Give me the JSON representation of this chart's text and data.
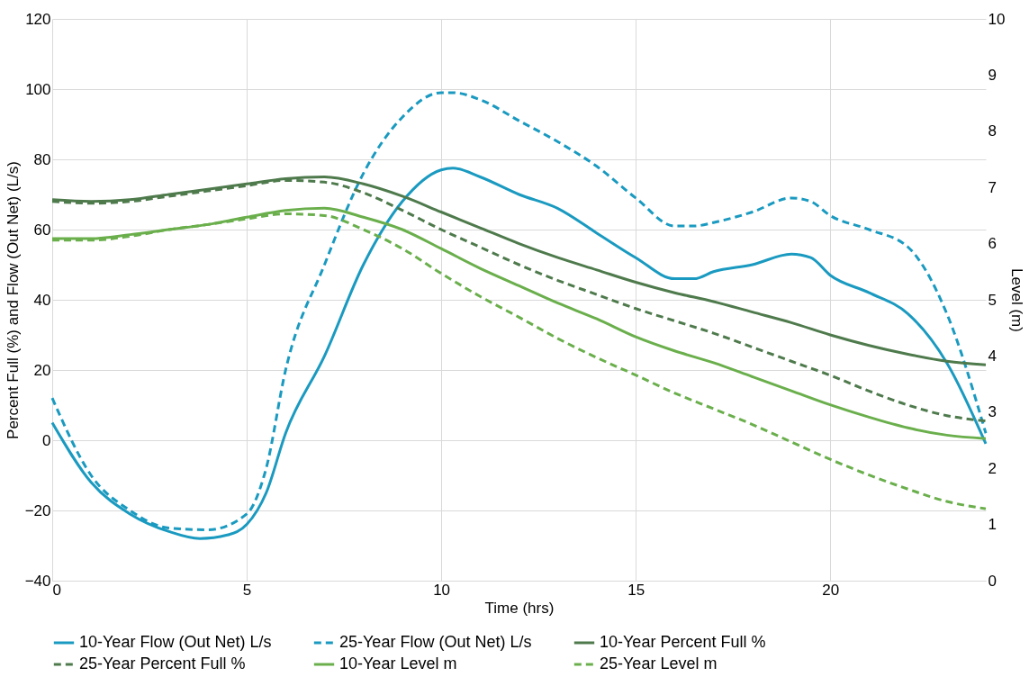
{
  "chart_data": {
    "type": "line",
    "xlabel": "Time (hrs)",
    "ylabel": "Percent Full (%) and Flow (Out Net) (L/s)",
    "y2label": "Level (m)",
    "x": [
      0,
      1,
      2,
      3,
      4,
      5,
      6,
      7,
      8,
      9,
      10,
      11,
      12,
      13,
      14,
      15,
      16,
      17,
      18,
      19,
      20,
      21,
      22,
      23,
      24
    ],
    "xlim": [
      0,
      24
    ],
    "xticks": [
      0,
      5,
      10,
      15,
      20
    ],
    "ylim": [
      -40,
      120
    ],
    "yticks": [
      -40,
      -20,
      0,
      20,
      40,
      60,
      80,
      100,
      120
    ],
    "y2lim": [
      0,
      10
    ],
    "y2ticks": [
      0,
      1,
      2,
      3,
      4,
      5,
      6,
      7,
      8,
      9,
      10
    ],
    "grid": true,
    "legend": "bottom",
    "series": [
      {
        "name": "10-Year Flow (Out Net) L/s",
        "color": "#1a9ac0",
        "line_style": "solid",
        "x": [
          0,
          1,
          2,
          3,
          3.8,
          4.5,
          5,
          5.5,
          6,
          7,
          8,
          9,
          10,
          10.3,
          11,
          12,
          13,
          14,
          15,
          16,
          16.5,
          17,
          18,
          19,
          19.5,
          20,
          21,
          22,
          23,
          24
        ],
        "values": [
          5,
          -12,
          -21,
          -26,
          -28,
          -27,
          -24,
          -15,
          2,
          24,
          50,
          68,
          77,
          77.5,
          75,
          70,
          66,
          59,
          52,
          46,
          46,
          48,
          50,
          53,
          52,
          47,
          42,
          36,
          22,
          -1
        ]
      },
      {
        "name": "25-Year Flow (Out Net) L/s",
        "color": "#1a9ac0",
        "line_style": "dashed",
        "x": [
          0,
          1,
          2,
          3,
          4,
          5,
          5.5,
          6,
          7,
          8,
          9,
          10,
          10.3,
          11,
          12,
          13,
          14,
          15,
          16,
          16.5,
          17,
          18,
          19,
          19.5,
          20,
          21,
          22,
          23,
          24
        ],
        "values": [
          12,
          -10,
          -20,
          -25,
          -25.5,
          -21,
          -8,
          20,
          50,
          76,
          92,
          99,
          99,
          97,
          91,
          85,
          78,
          69,
          61,
          61,
          62,
          65,
          69,
          68,
          64,
          60,
          55,
          36,
          2
        ]
      },
      {
        "name": "10-Year Percent Full %",
        "color": "#4e7a4c",
        "line_style": "solid",
        "values": [
          68.5,
          68,
          68.5,
          70,
          71.5,
          73,
          74.5,
          75,
          73,
          69.5,
          65,
          60.5,
          56,
          52,
          48.5,
          45,
          42,
          39.5,
          36.5,
          33.5,
          30,
          27,
          24.5,
          22.5,
          21.5
        ]
      },
      {
        "name": "25-Year Percent Full %",
        "color": "#4e7a4c",
        "line_style": "dashed",
        "values": [
          68,
          67.5,
          68,
          69.5,
          71,
          72.5,
          74,
          73.5,
          70.5,
          65.5,
          60,
          55,
          50,
          45.5,
          41.5,
          37.5,
          34,
          30.5,
          26.5,
          22.5,
          18.5,
          14,
          10,
          7,
          5.5
        ]
      },
      {
        "name": "10-Year Level m",
        "color": "#6aaf4c",
        "line_style": "solid",
        "axis": "y2",
        "values": [
          6.09,
          6.09,
          6.16,
          6.25,
          6.34,
          6.47,
          6.59,
          6.63,
          6.47,
          6.25,
          5.91,
          5.56,
          5.25,
          4.94,
          4.66,
          4.34,
          4.09,
          3.88,
          3.63,
          3.38,
          3.13,
          2.91,
          2.72,
          2.59,
          2.53
        ]
      },
      {
        "name": "25-Year Level m",
        "color": "#6aaf4c",
        "line_style": "dashed",
        "axis": "y2",
        "values": [
          6.06,
          6.06,
          6.13,
          6.25,
          6.34,
          6.44,
          6.53,
          6.5,
          6.25,
          5.91,
          5.47,
          5.06,
          4.69,
          4.31,
          3.97,
          3.66,
          3.34,
          3.06,
          2.78,
          2.47,
          2.16,
          1.88,
          1.63,
          1.41,
          1.28
        ]
      }
    ]
  }
}
